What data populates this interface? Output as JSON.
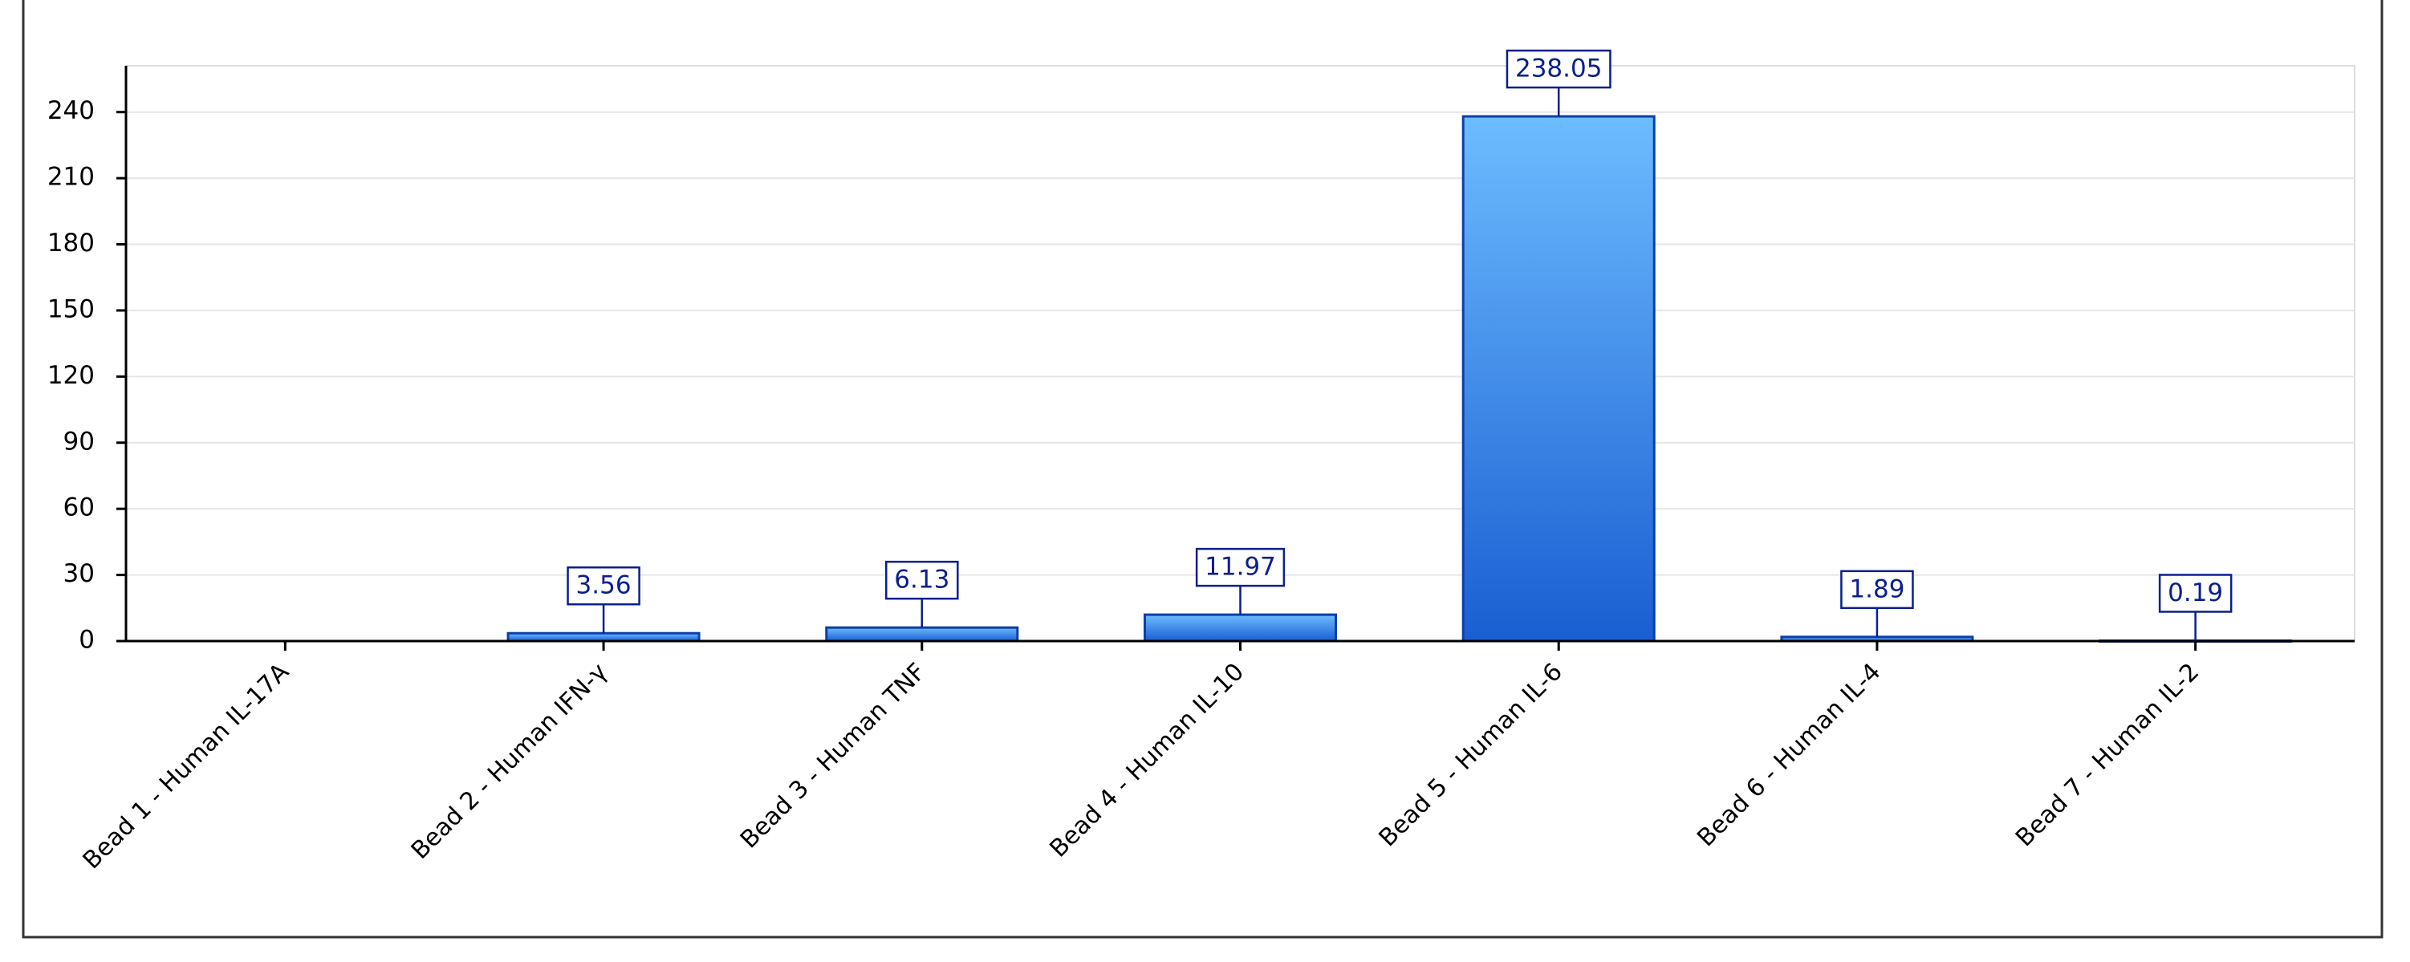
{
  "chart_data": {
    "type": "bar",
    "categories": [
      "Bead 1 - Human IL-17A",
      "Bead 2 - Human IFN-γ",
      "Bead 3 - Human TNF",
      "Bead 4 - Human IL-10",
      "Bead 5 - Human IL-6",
      "Bead 6 - Human IL-4",
      "Bead 7 - Human IL-2"
    ],
    "values": [
      null,
      3.56,
      6.13,
      11.97,
      238.05,
      1.89,
      0.19
    ],
    "color": "#3f94f0",
    "ylim": [
      0,
      261
    ],
    "yticks": [
      0,
      30,
      60,
      90,
      120,
      150,
      180,
      210,
      240
    ],
    "grid": true
  }
}
